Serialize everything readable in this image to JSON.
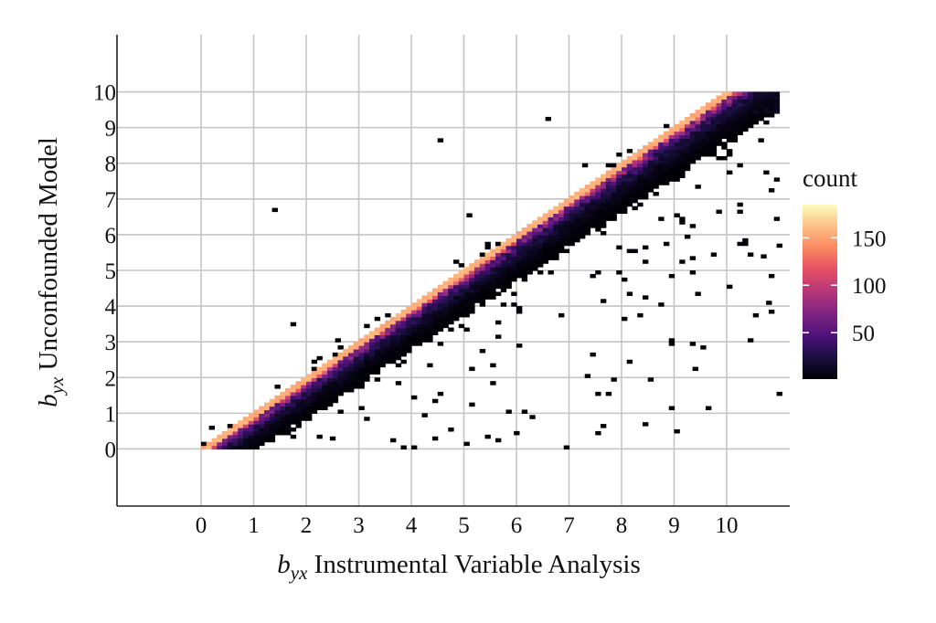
{
  "chart_data": {
    "type": "heatmap",
    "title": "",
    "xlabel": {
      "prefix": "b",
      "subscript": "yx",
      "suffix": " Instrumental Variable Analysis"
    },
    "ylabel": {
      "prefix": "b",
      "subscript": "yx",
      "suffix": " Unconfounded Model"
    },
    "xlim": [
      -1.6,
      11.2
    ],
    "ylim": [
      -1.6,
      11.6
    ],
    "x_ticks": [
      0,
      1,
      2,
      3,
      4,
      5,
      6,
      7,
      8,
      9,
      10
    ],
    "y_ticks": [
      0,
      1,
      2,
      3,
      4,
      5,
      6,
      7,
      8,
      9,
      10
    ],
    "grid": true,
    "bin_width": 0.1,
    "legend": {
      "title": "count",
      "position": "right",
      "ticks": [
        50,
        100,
        150
      ],
      "min": 1,
      "max": 185,
      "colormap": "magma"
    },
    "description_of_density": "Counts concentrate in a narrow band where y is slightly below x (peak near y = x - 0.1, count ~150-185), decaying below the diagonal; no counts above y = x + 0.4; values clipped at 10.",
    "outliers": [
      [
        1.35,
        6.65
      ],
      [
        4.5,
        8.6
      ],
      [
        6.55,
        9.2
      ],
      [
        5.05,
        6.5
      ],
      [
        0.15,
        0.55
      ],
      [
        10.95,
        1.5
      ],
      [
        9.35,
        2.2
      ],
      [
        7.6,
        0.6
      ],
      [
        8.4,
        0.65
      ],
      [
        9.0,
        0.45
      ],
      [
        4.7,
        0.5
      ],
      [
        4.4,
        0.25
      ],
      [
        3.6,
        0.2
      ],
      [
        2.45,
        0.25
      ],
      [
        1.7,
        3.45
      ],
      [
        2.9,
        1.7
      ],
      [
        3.95,
        3.0
      ],
      [
        6.0,
        2.85
      ],
      [
        6.25,
        0.85
      ],
      [
        7.5,
        1.5
      ],
      [
        10.4,
        3.0
      ],
      [
        10.65,
        5.35
      ],
      [
        10.95,
        5.65
      ],
      [
        10.75,
        4.05
      ],
      [
        10.2,
        5.7
      ],
      [
        10.9,
        6.4
      ],
      [
        9.8,
        8.1
      ],
      [
        7.25,
        7.9
      ],
      [
        7.9,
        8.2
      ],
      [
        2.55,
        3.0
      ],
      [
        5.95,
        0.4
      ],
      [
        8.5,
        1.9
      ],
      [
        7.3,
        2.0
      ],
      [
        8.1,
        2.4
      ],
      [
        9.5,
        2.8
      ]
    ]
  }
}
